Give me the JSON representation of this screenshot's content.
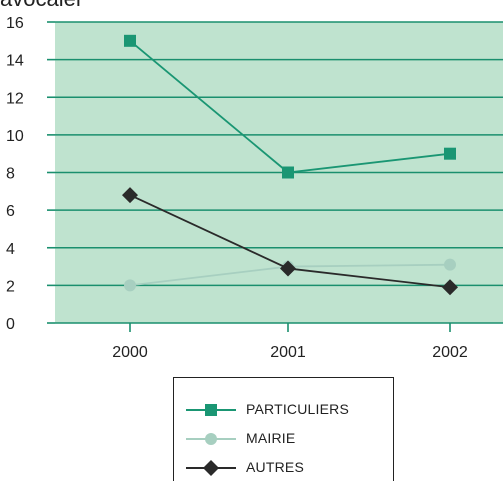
{
  "chart_data": {
    "type": "line",
    "title": "",
    "xlabel": "",
    "ylabel": "",
    "categories": [
      "2000",
      "2001",
      "2002"
    ],
    "ylim": [
      0,
      16
    ],
    "yticks": [
      "0",
      "2",
      "4",
      "6",
      "8",
      "10",
      "12",
      "14",
      "16"
    ],
    "grid": true,
    "legend_position": "bottom",
    "plot_background": "#bfe3cf",
    "series": [
      {
        "name": "PARTICULIERS",
        "values": [
          15,
          8,
          9
        ],
        "color": "#1a9673",
        "marker": "square"
      },
      {
        "name": "MAIRIE",
        "values": [
          2,
          3,
          3.1
        ],
        "color": "#a7cfc0",
        "marker": "circle"
      },
      {
        "name": "AUTRES",
        "values": [
          6.8,
          2.9,
          1.9
        ],
        "color": "#2a2a2a",
        "marker": "diamond"
      }
    ]
  },
  "top_fragment": "avocaier"
}
